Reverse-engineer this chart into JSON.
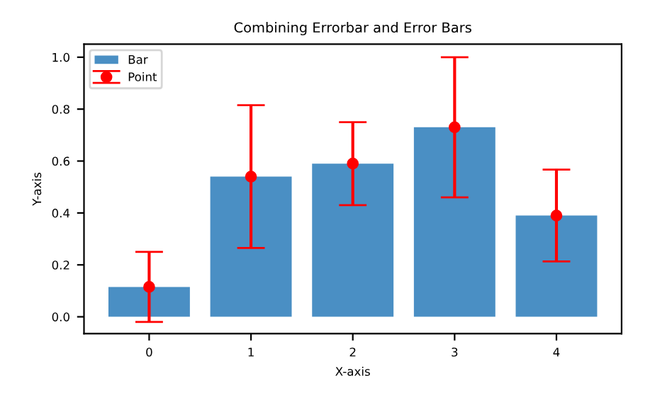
{
  "chart_data": {
    "type": "bar",
    "title": "Combining Errorbar and Error Bars",
    "xlabel": "X-axis",
    "ylabel": "Y-axis",
    "categories": [
      "0",
      "1",
      "2",
      "3",
      "4"
    ],
    "series": [
      {
        "name": "Bar",
        "color": "#4a8fc4",
        "values": [
          0.115,
          0.54,
          0.59,
          0.73,
          0.39
        ]
      },
      {
        "name": "Point",
        "type": "scatter",
        "color": "#ff0000",
        "marker": "circle",
        "values": [
          0.115,
          0.54,
          0.59,
          0.73,
          0.39
        ],
        "errors": [
          0.135,
          0.275,
          0.16,
          0.27,
          0.177
        ]
      }
    ],
    "ylim": [
      -0.065,
      1.05
    ],
    "yticks": [
      {
        "value": 0,
        "label": "0.0"
      },
      0.2,
      0.4,
      0.6,
      0.8,
      {
        "value": 1,
        "label": "1.0"
      }
    ],
    "legend": "top left",
    "grid": false
  }
}
